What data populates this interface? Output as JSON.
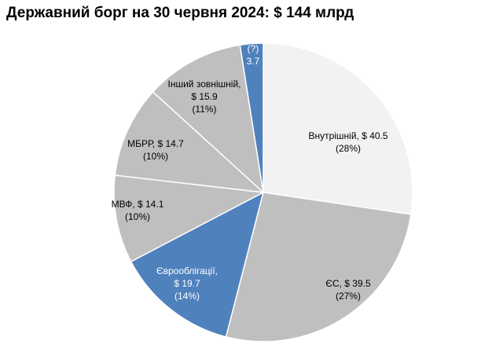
{
  "chart_data": {
    "type": "pie",
    "title": "Державний борг на 30 червня 2024: $ 144 млрд",
    "slices": [
      {
        "label_lines": [
          "Внутрішній, $ 40.5",
          "(28%)"
        ],
        "value": 40.5,
        "color": "#f2f2f2",
        "text_color": "#000000"
      },
      {
        "label_lines": [
          "ЄС, $ 39.5",
          "(27%)"
        ],
        "value": 39.5,
        "color": "#bfbfbf",
        "text_color": "#000000"
      },
      {
        "label_lines": [
          "Єврооблігації,",
          "$ 19.7",
          "(14%)"
        ],
        "value": 19.7,
        "color": "#4f81bd",
        "text_color": "#ffffff"
      },
      {
        "label_lines": [
          "МВФ, $ 14.1",
          "(10%)"
        ],
        "value": 14.1,
        "color": "#bfbfbf",
        "text_color": "#000000"
      },
      {
        "label_lines": [
          "МБРР, $ 14.7",
          "(10%)"
        ],
        "value": 14.7,
        "color": "#bfbfbf",
        "text_color": "#000000"
      },
      {
        "label_lines": [
          "Інший зовнішній,",
          "$ 15.9",
          "(11%)"
        ],
        "value": 15.9,
        "color": "#bfbfbf",
        "text_color": "#000000"
      },
      {
        "label_lines": [
          "(?)",
          "3.7"
        ],
        "value": 3.7,
        "color": "#4f81bd",
        "text_color": "#ffffff"
      }
    ]
  }
}
